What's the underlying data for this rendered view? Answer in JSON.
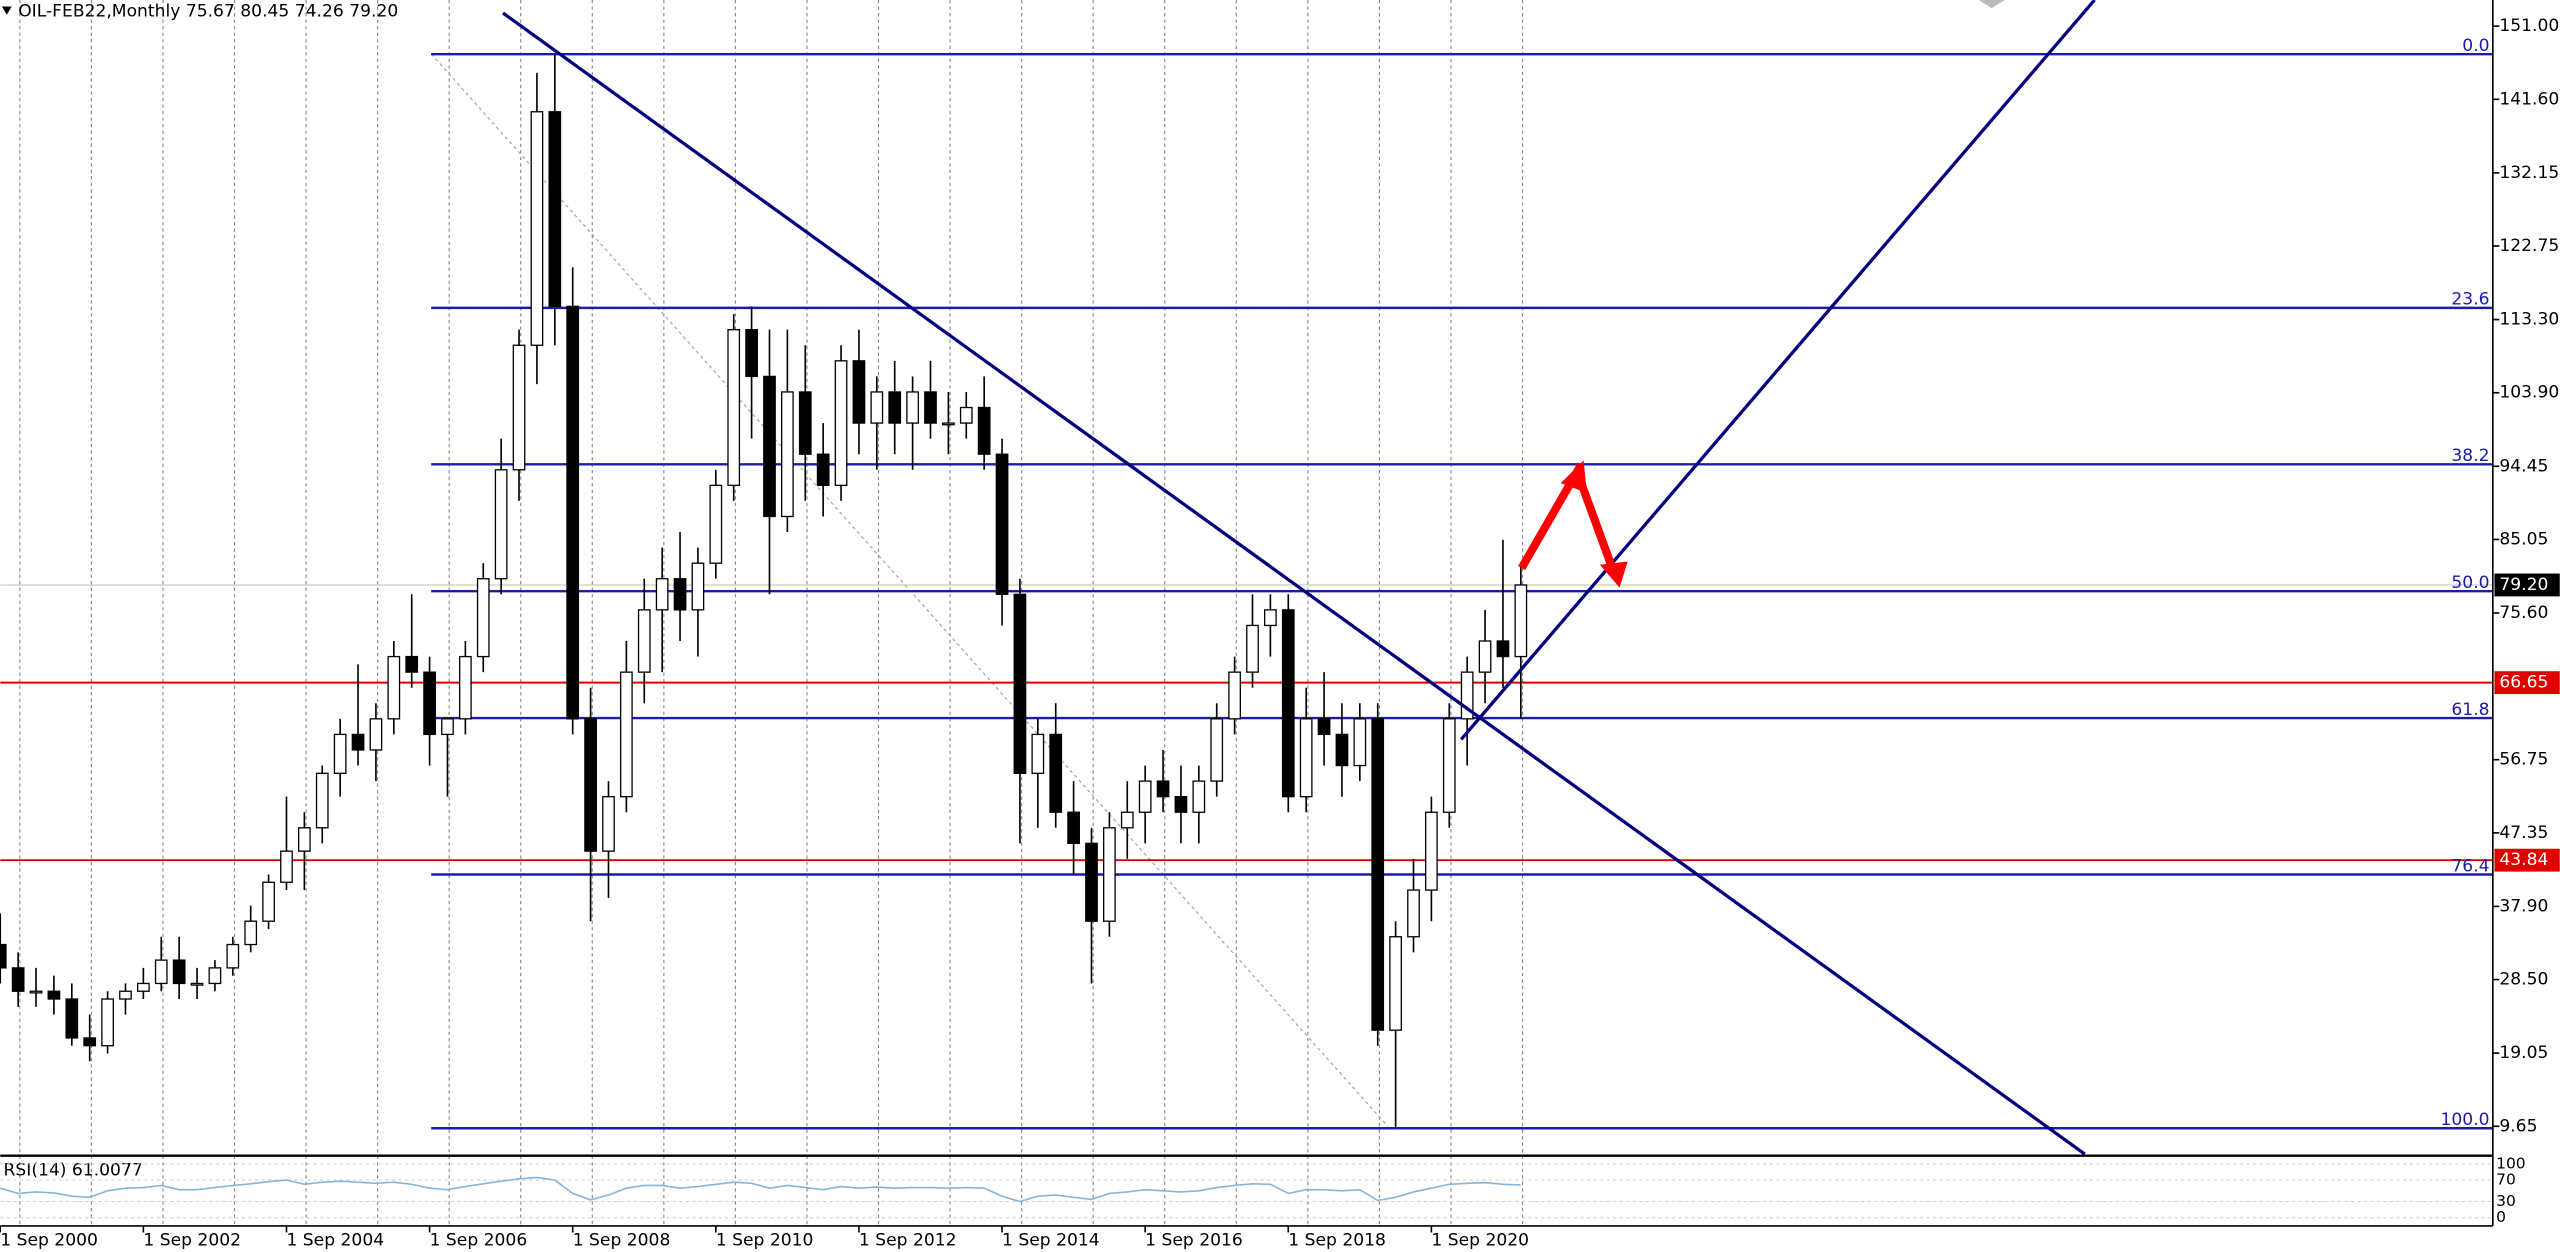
{
  "chart_data": {
    "type": "candlestick",
    "title": "OIL-FEB22,Monthly  75.67 80.45 74.26 79.20",
    "x": [
      "2000-09",
      "2000-12",
      "2001-03",
      "2001-06",
      "2001-09",
      "2001-12",
      "2002-03",
      "2002-06",
      "2002-09",
      "2002-12",
      "2003-03",
      "2003-06",
      "2003-09",
      "2003-12",
      "2004-03",
      "2004-06",
      "2004-09",
      "2004-12",
      "2005-03",
      "2005-06",
      "2005-09",
      "2005-12",
      "2006-03",
      "2006-06",
      "2006-09",
      "2006-12",
      "2007-03",
      "2007-06",
      "2007-09",
      "2007-12",
      "2008-03",
      "2008-06",
      "2008-09",
      "2008-12",
      "2009-03",
      "2009-06",
      "2009-09",
      "2009-12",
      "2010-03",
      "2010-06",
      "2010-09",
      "2010-12",
      "2011-03",
      "2011-06",
      "2011-09",
      "2011-12",
      "2012-03",
      "2012-06",
      "2012-09",
      "2012-12",
      "2013-03",
      "2013-06",
      "2013-09",
      "2013-12",
      "2014-03",
      "2014-06",
      "2014-09",
      "2014-12",
      "2015-03",
      "2015-06",
      "2015-09",
      "2015-12",
      "2016-03",
      "2016-06",
      "2016-09",
      "2016-12",
      "2017-03",
      "2017-06",
      "2017-09",
      "2017-12",
      "2018-03",
      "2018-06",
      "2018-09",
      "2018-12",
      "2019-03",
      "2019-06",
      "2019-09",
      "2019-12",
      "2020-03",
      "2020-06",
      "2020-09",
      "2020-12",
      "2021-03",
      "2021-06",
      "2021-09",
      "2021-12"
    ],
    "ohlc": [
      [
        33,
        37,
        28,
        30
      ],
      [
        30,
        32,
        25,
        27
      ],
      [
        27,
        30,
        25,
        27
      ],
      [
        27,
        29,
        24,
        26
      ],
      [
        26,
        28,
        20,
        21
      ],
      [
        21,
        24,
        18,
        20
      ],
      [
        20,
        27,
        19,
        26
      ],
      [
        26,
        28,
        24,
        27
      ],
      [
        27,
        30,
        26,
        28
      ],
      [
        28,
        34,
        27,
        31
      ],
      [
        31,
        34,
        26,
        28
      ],
      [
        28,
        30,
        26,
        28
      ],
      [
        28,
        31,
        27,
        30
      ],
      [
        30,
        34,
        29,
        33
      ],
      [
        33,
        38,
        32,
        36
      ],
      [
        36,
        42,
        35,
        41
      ],
      [
        41,
        52,
        40,
        45
      ],
      [
        45,
        50,
        40,
        48
      ],
      [
        48,
        56,
        46,
        55
      ],
      [
        55,
        62,
        52,
        60
      ],
      [
        60,
        69,
        56,
        58
      ],
      [
        58,
        64,
        54,
        62
      ],
      [
        62,
        72,
        60,
        70
      ],
      [
        70,
        78,
        66,
        68
      ],
      [
        68,
        70,
        56,
        60
      ],
      [
        60,
        62,
        52,
        62
      ],
      [
        62,
        72,
        60,
        70
      ],
      [
        70,
        82,
        68,
        80
      ],
      [
        80,
        98,
        78,
        94
      ],
      [
        94,
        112,
        90,
        110
      ],
      [
        110,
        145,
        105,
        140
      ],
      [
        140,
        147.3,
        110,
        115
      ],
      [
        115,
        120,
        60,
        62
      ],
      [
        62,
        66,
        36,
        45
      ],
      [
        45,
        54,
        39,
        52
      ],
      [
        52,
        72,
        50,
        68
      ],
      [
        68,
        80,
        64,
        76
      ],
      [
        76,
        84,
        68,
        80
      ],
      [
        80,
        86,
        72,
        76
      ],
      [
        76,
        84,
        70,
        82
      ],
      [
        82,
        94,
        80,
        92
      ],
      [
        92,
        114,
        90,
        112
      ],
      [
        112,
        115,
        98,
        106
      ],
      [
        106,
        112,
        78,
        88
      ],
      [
        88,
        112,
        86,
        104
      ],
      [
        104,
        110,
        90,
        96
      ],
      [
        96,
        100,
        88,
        92
      ],
      [
        92,
        110,
        90,
        108
      ],
      [
        108,
        112,
        96,
        100
      ],
      [
        100,
        106,
        94,
        104
      ],
      [
        104,
        108,
        96,
        100
      ],
      [
        100,
        106,
        94,
        104
      ],
      [
        104,
        108,
        98,
        100
      ],
      [
        100,
        104,
        96,
        100
      ],
      [
        100,
        104,
        98,
        102
      ],
      [
        102,
        106,
        94,
        96
      ],
      [
        96,
        98,
        74,
        78
      ],
      [
        78,
        80,
        46,
        55
      ],
      [
        55,
        62,
        48,
        60
      ],
      [
        60,
        64,
        48,
        50
      ],
      [
        50,
        54,
        42,
        46
      ],
      [
        46,
        48,
        28,
        36
      ],
      [
        36,
        50,
        34,
        48
      ],
      [
        48,
        54,
        44,
        50
      ],
      [
        50,
        56,
        46,
        54
      ],
      [
        54,
        58,
        50,
        52
      ],
      [
        52,
        56,
        46,
        50
      ],
      [
        50,
        56,
        46,
        54
      ],
      [
        54,
        64,
        52,
        62
      ],
      [
        62,
        70,
        60,
        68
      ],
      [
        68,
        78,
        66,
        74
      ],
      [
        74,
        78,
        70,
        76
      ],
      [
        76,
        78,
        50,
        52
      ],
      [
        52,
        66,
        50,
        62
      ],
      [
        62,
        68,
        56,
        60
      ],
      [
        60,
        64,
        52,
        56
      ],
      [
        56,
        64,
        54,
        62
      ],
      [
        62,
        64,
        20,
        22
      ],
      [
        22,
        36,
        9.4,
        34
      ],
      [
        34,
        44,
        32,
        40
      ],
      [
        40,
        52,
        36,
        50
      ],
      [
        50,
        64,
        48,
        62
      ],
      [
        62,
        70,
        56,
        68
      ],
      [
        68,
        76,
        64,
        72
      ],
      [
        72,
        85,
        66,
        70
      ],
      [
        70,
        82,
        62,
        79.2
      ]
    ],
    "xlim": [
      "2000-09-01",
      "2035-07-01"
    ],
    "xticks": [
      {
        "value": "2000-09-01",
        "label": "1 Sep 2000"
      },
      {
        "value": "2002-09-01",
        "label": "1 Sep 2002"
      },
      {
        "value": "2004-09-01",
        "label": "1 Sep 2004"
      },
      {
        "value": "2006-09-01",
        "label": "1 Sep 2006"
      },
      {
        "value": "2008-09-01",
        "label": "1 Sep 2008"
      },
      {
        "value": "2010-09-01",
        "label": "1 Sep 2010"
      },
      {
        "value": "2012-09-01",
        "label": "1 Sep 2012"
      },
      {
        "value": "2014-09-01",
        "label": "1 Sep 2014"
      },
      {
        "value": "2016-09-01",
        "label": "1 Sep 2016"
      },
      {
        "value": "2018-09-01",
        "label": "1 Sep 2018"
      },
      {
        "value": "2020-09-01",
        "label": "1 Sep 2020"
      }
    ],
    "ylim": [
      6.08,
      154.36
    ],
    "yticks": [
      {
        "value": 151,
        "label": "151.00"
      },
      {
        "value": 141.6,
        "label": "141.60"
      },
      {
        "value": 132.15,
        "label": "132.15"
      },
      {
        "value": 122.75,
        "label": "122.75"
      },
      {
        "value": 113.3,
        "label": "113.30"
      },
      {
        "value": 103.9,
        "label": "103.90"
      },
      {
        "value": 94.45,
        "label": "94.45"
      },
      {
        "value": 85.05,
        "label": "85.05"
      },
      {
        "value": 75.6,
        "label": "75.60"
      },
      {
        "value": 56.75,
        "label": "56.75"
      },
      {
        "value": 47.35,
        "label": "47.35"
      },
      {
        "value": 37.9,
        "label": "37.90"
      },
      {
        "value": 28.5,
        "label": "28.50"
      },
      {
        "value": 19.05,
        "label": "19.05"
      },
      {
        "value": 9.65,
        "label": "9.65"
      }
    ],
    "grid": true,
    "bull_color": "#ffffff",
    "bear_color": "#000000",
    "last_price": {
      "value": 79.2,
      "label": "79.20"
    },
    "levels": {
      "color": "#e00000",
      "values": [
        66.65,
        43.84
      ]
    },
    "fibonacci": {
      "color": "#1c1ca8",
      "levels": [
        {
          "label": "0.0",
          "value": 147.4
        },
        {
          "label": "23.6",
          "value": 114.8
        },
        {
          "label": "38.2",
          "value": 94.7
        },
        {
          "label": "50.0",
          "value": 78.4
        },
        {
          "label": "61.8",
          "value": 62.1
        },
        {
          "label": "76.4",
          "value": 42.0
        },
        {
          "label": "100.0",
          "value": 9.4
        }
      ]
    },
    "rsi": {
      "title": "RSI(14) 61.0077",
      "color": "#87b5d8",
      "ylim": [
        0,
        100
      ],
      "yticks": [
        100,
        70,
        30,
        0
      ],
      "values": [
        55,
        45,
        48,
        46,
        40,
        38,
        50,
        55,
        56,
        60,
        52,
        52,
        56,
        60,
        63,
        67,
        70,
        62,
        66,
        68,
        66,
        64,
        66,
        62,
        55,
        52,
        58,
        63,
        68,
        72,
        75,
        70,
        45,
        33,
        42,
        55,
        60,
        60,
        55,
        58,
        62,
        66,
        64,
        55,
        60,
        56,
        52,
        58,
        55,
        57,
        55,
        56,
        56,
        55,
        56,
        55,
        40,
        30,
        40,
        42,
        38,
        34,
        45,
        48,
        52,
        50,
        48,
        50,
        56,
        60,
        63,
        62,
        45,
        52,
        52,
        50,
        52,
        32,
        38,
        48,
        55,
        62,
        64,
        65,
        62,
        61
      ]
    }
  }
}
